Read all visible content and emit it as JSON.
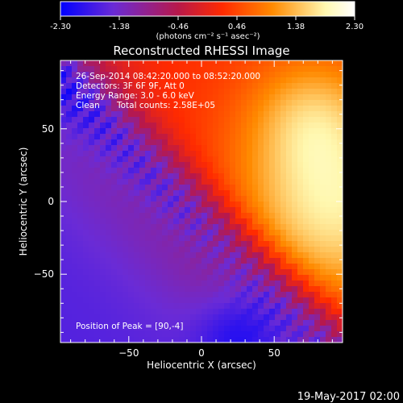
{
  "chart_data": {
    "type": "heatmap",
    "title": "Reconstructed RHESSI Image",
    "xlabel": "Heliocentric X (arcsec)",
    "ylabel": "Heliocentric Y (arcsec)",
    "xlim": [
      -97,
      97
    ],
    "ylim": [
      -97,
      97
    ],
    "xticks": [
      -50,
      0,
      50
    ],
    "yticks": [
      50,
      0,
      -50
    ],
    "colorbar": {
      "ticks": [
        "-2.30",
        "-1.38",
        "-0.46",
        "0.46",
        "1.38",
        "2.30"
      ],
      "range": [
        -2.3,
        2.3
      ],
      "units_label": "(photons cm⁻² s⁻¹ asec⁻²)",
      "colors": [
        "#0000ff",
        "#6a2bd6",
        "#b8184a",
        "#ff2a00",
        "#ff8a00",
        "#fff8b0",
        "#ffffff"
      ]
    },
    "annotations": {
      "time": "26-Sep-2014 08:42:20.000 to 08:52:20.000",
      "detectors": "Detectors: 3F 6F 9F, Att 0",
      "energy": "Energy Range: 3.0 - 6.0 keV",
      "clean": "Clean",
      "counts": "Total counts: 2.58E+05",
      "peak": "Position of Peak = [90,-4]"
    },
    "peak": [
      90,
      -4
    ],
    "grid": false
  },
  "footer": {
    "date": "19-May-2017 02:00"
  }
}
